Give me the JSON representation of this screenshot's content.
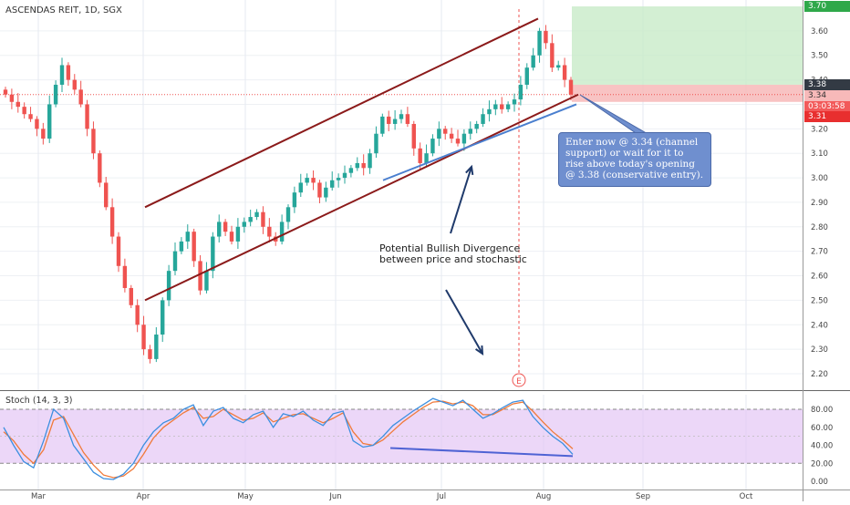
{
  "header": {
    "symbol_label": "ASCENDAS REIT, 1D, SGX"
  },
  "annotations": {
    "divergence_text_line1": "Potential Bullish Divergence",
    "divergence_text_line2": "between price and stochastic",
    "callout_text": "Enter now @ 3.34 (channel support) or wait for it to rise above today's opening @ 3.38 (conservative entry).",
    "earnings_marker": "E"
  },
  "price_tags": {
    "target": "3.70",
    "open": "3.38",
    "entry": "3.34",
    "countdown": "03:03:58",
    "stop": "3.31"
  },
  "colors": {
    "up_candle": "#26a69a",
    "down_candle": "#ef5350",
    "channel": "#8b1a1a",
    "support_line": "#4a7fcf",
    "target_zone": "#c8ebc8",
    "stop_zone": "#f7b9b9",
    "stoch_band": "#e4c6f5",
    "stoch_k": "#3c8fe0",
    "stoch_d": "#f07a3a"
  },
  "chart_data": [
    {
      "type": "line",
      "title": "ASCENDAS REIT, 1D, SGX",
      "xlabel": "",
      "ylabel": "",
      "x_tick_labels": [
        "Mar",
        "Apr",
        "May",
        "Jun",
        "Jul",
        "Aug",
        "Sep",
        "Oct"
      ],
      "y_tick_labels": [
        "2.20",
        "2.30",
        "2.40",
        "2.50",
        "2.60",
        "2.70",
        "2.80",
        "2.90",
        "3.00",
        "3.10",
        "3.20",
        "3.30",
        "3.40",
        "3.50",
        "3.60"
      ],
      "ylim": [
        2.15,
        3.72
      ],
      "grid": true,
      "series": [
        {
          "values": [
            3.34,
            3.31,
            3.29,
            3.26,
            3.24,
            3.2,
            3.16,
            3.3,
            3.38,
            3.46,
            3.4,
            3.36,
            3.3,
            3.2,
            3.1,
            2.98,
            2.88,
            2.76,
            2.64,
            2.55,
            2.48,
            2.4,
            2.3,
            2.26,
            2.36,
            2.5,
            2.62,
            2.7,
            2.74,
            2.78,
            2.66,
            2.54,
            2.62,
            2.76,
            2.82,
            2.78,
            2.74,
            2.8,
            2.82,
            2.84,
            2.86,
            2.8,
            2.76,
            2.74,
            2.82,
            2.88,
            2.94,
            2.98,
            3.0,
            2.98,
            2.92,
            2.96,
            2.99,
            3.0,
            3.02,
            3.04,
            3.06,
            3.04,
            3.1,
            3.18,
            3.25,
            3.22,
            3.24,
            3.26,
            3.22,
            3.12,
            3.06,
            3.1,
            3.16,
            3.2,
            3.18,
            3.16,
            3.14,
            3.18,
            3.2,
            3.22,
            3.26,
            3.28,
            3.3,
            3.28,
            3.3,
            3.32,
            3.38,
            3.45,
            3.5,
            3.6,
            3.55,
            3.45,
            3.46,
            3.4,
            3.34
          ]
        }
      ]
    },
    {
      "type": "line",
      "title": "Stoch (14, 3, 3)",
      "xlabel": "",
      "ylabel": "",
      "y_tick_labels": [
        "0.00",
        "20.00",
        "40.00",
        "60.00",
        "80.00"
      ],
      "ylim": [
        0,
        100
      ],
      "band": [
        20,
        80
      ],
      "grid": true,
      "series": [
        {
          "values": [
            60,
            40,
            22,
            15,
            45,
            80,
            70,
            40,
            25,
            10,
            3,
            2,
            8,
            20,
            40,
            55,
            65,
            70,
            80,
            85,
            62,
            78,
            82,
            70,
            65,
            74,
            78,
            60,
            75,
            72,
            78,
            68,
            62,
            75,
            78,
            45,
            38,
            40,
            50,
            62,
            70,
            78,
            85,
            92,
            88,
            84,
            90,
            80,
            70,
            75,
            82,
            88,
            90,
            72,
            60,
            50,
            42,
            30
          ]
        },
        {
          "values": [
            55,
            45,
            30,
            20,
            35,
            68,
            72,
            52,
            32,
            18,
            7,
            4,
            6,
            14,
            30,
            48,
            60,
            68,
            76,
            82,
            70,
            72,
            80,
            74,
            68,
            70,
            76,
            66,
            70,
            74,
            75,
            70,
            65,
            70,
            76,
            55,
            42,
            40,
            46,
            56,
            66,
            74,
            82,
            88,
            89,
            86,
            88,
            84,
            74,
            74,
            80,
            86,
            88,
            78,
            66,
            55,
            46,
            36
          ]
        }
      ]
    }
  ]
}
